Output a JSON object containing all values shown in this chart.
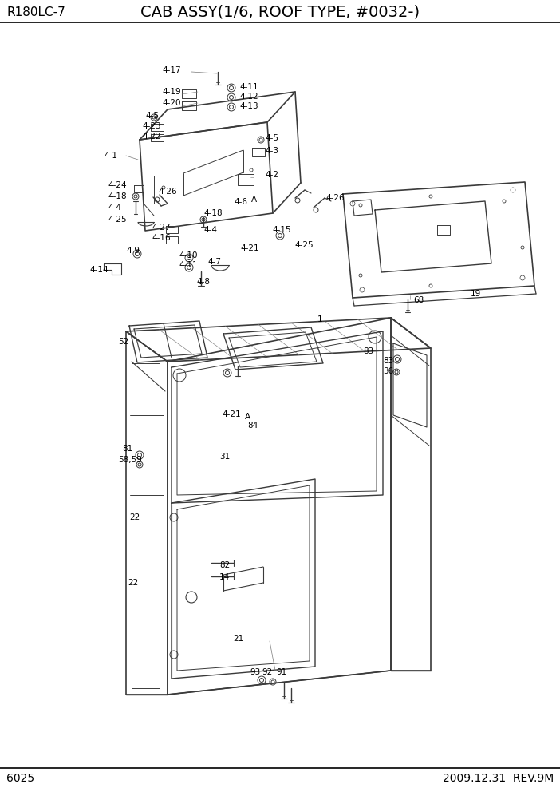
{
  "title": "CAB ASSY(1/6, ROOF TYPE, #0032-)",
  "model": "R180LC-7",
  "page": "6025",
  "date": "2009.12.31  REV.9M",
  "bg_color": "#ffffff",
  "lc": "#3a3a3a",
  "label_fs": 7.5,
  "title_fs": 14,
  "model_fs": 11,
  "footer_fs": 10
}
